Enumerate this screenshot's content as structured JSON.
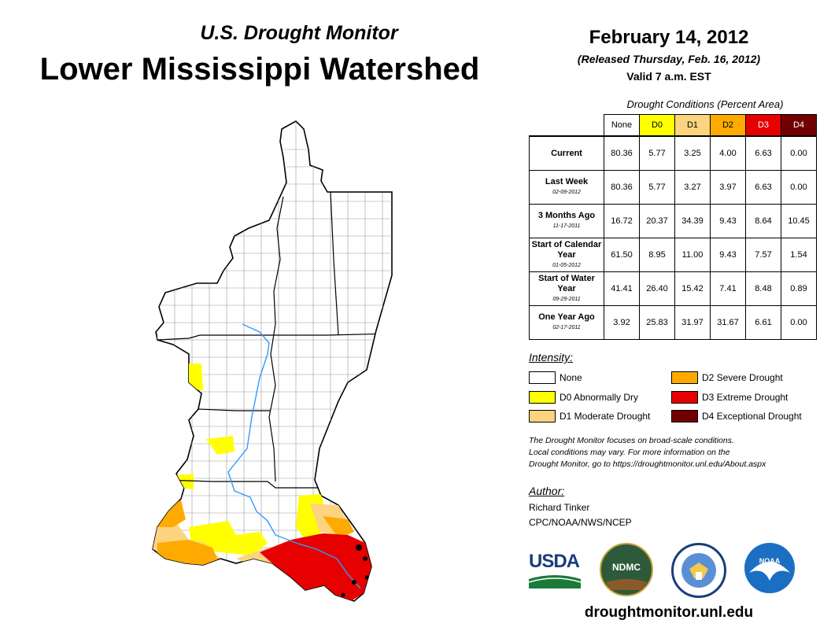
{
  "header": {
    "subtitle": "U.S. Drought Monitor",
    "title": "Lower Mississippi Watershed",
    "date": "February 14, 2012",
    "released": "(Released Thursday, Feb. 16, 2012)",
    "valid": "Valid 7 a.m. EST"
  },
  "table": {
    "caption": "Drought Conditions (Percent Area)",
    "columns": [
      "None",
      "D0",
      "D1",
      "D2",
      "D3",
      "D4"
    ],
    "column_colors": [
      "#ffffff",
      "#ffff00",
      "#fcd37f",
      "#ffaa00",
      "#e60000",
      "#730000"
    ],
    "rows": [
      {
        "label": "Current",
        "sublabel": "",
        "values": [
          "80.36",
          "5.77",
          "3.25",
          "4.00",
          "6.63",
          "0.00"
        ]
      },
      {
        "label": "Last Week",
        "sublabel": "02-09-2012",
        "values": [
          "80.36",
          "5.77",
          "3.27",
          "3.97",
          "6.63",
          "0.00"
        ]
      },
      {
        "label": "3 Months Ago",
        "sublabel": "11-17-2011",
        "values": [
          "16.72",
          "20.37",
          "34.39",
          "9.43",
          "8.64",
          "10.45"
        ]
      },
      {
        "label": "Start of Calendar Year",
        "sublabel": "01-05-2012",
        "values": [
          "61.50",
          "8.95",
          "11.00",
          "9.43",
          "7.57",
          "1.54"
        ]
      },
      {
        "label": "Start of Water Year",
        "sublabel": "09-29-2011",
        "values": [
          "41.41",
          "26.40",
          "15.42",
          "7.41",
          "8.48",
          "0.89"
        ]
      },
      {
        "label": "One Year Ago",
        "sublabel": "02-17-2011",
        "values": [
          "3.92",
          "25.83",
          "31.97",
          "31.67",
          "6.61",
          "0.00"
        ]
      }
    ]
  },
  "legend": {
    "label": "Intensity:",
    "items": [
      {
        "label": "None",
        "color": "#ffffff"
      },
      {
        "label": "D0 Abnormally Dry",
        "color": "#ffff00"
      },
      {
        "label": "D1 Moderate Drought",
        "color": "#fcd37f"
      },
      {
        "label": "D2 Severe Drought",
        "color": "#ffaa00"
      },
      {
        "label": "D3 Extreme Drought",
        "color": "#e60000"
      },
      {
        "label": "D4 Exceptional Drought",
        "color": "#730000"
      }
    ]
  },
  "note": {
    "line1": "The Drought Monitor focuses on broad-scale conditions.",
    "line2": "Local conditions may vary. For more information on the",
    "line3": "Drought Monitor, go to https://droughtmonitor.unl.edu/About.aspx"
  },
  "author": {
    "label": "Author:",
    "name": "Richard Tinker",
    "org": "CPC/NOAA/NWS/NCEP"
  },
  "logos": {
    "usda": "USDA",
    "ndmc": "NDMC",
    "noaa": "NOAA"
  },
  "website": "droughtmonitor.unl.edu"
}
